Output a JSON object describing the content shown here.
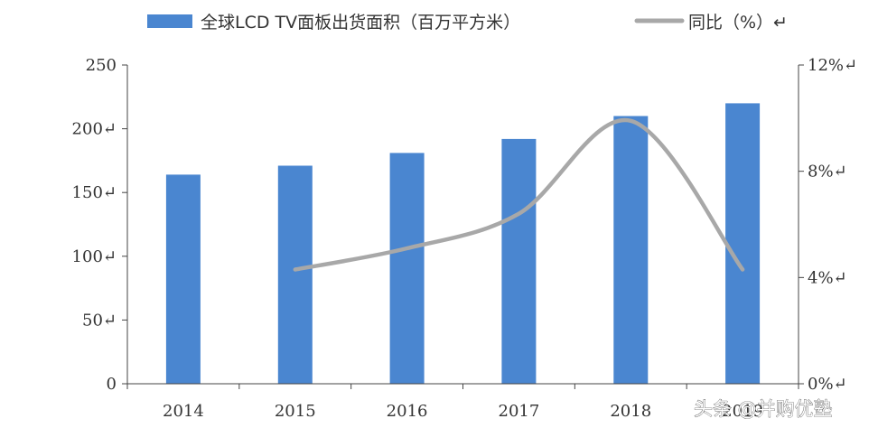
{
  "chart_data": {
    "type": "bar",
    "categories": [
      "2014",
      "2015",
      "2016",
      "2017",
      "2018",
      "2019"
    ],
    "x_tick_labels": [
      "2014",
      "2015",
      "2016",
      "2017",
      "2018",
      "2019"
    ],
    "series": [
      {
        "name": "全球LCD TV面板出货面积（百万平方米）",
        "type": "bar",
        "axis": "left",
        "color": "#4a86d0",
        "values": [
          164,
          171,
          181,
          192,
          210,
          220
        ]
      },
      {
        "name": "同比（%）↵",
        "type": "line",
        "axis": "right",
        "color": "#a8a8a8",
        "values": [
          null,
          4.3,
          5.1,
          6.4,
          9.9,
          4.3
        ]
      }
    ],
    "y_left": {
      "range": [
        0,
        250
      ],
      "ticks": [
        0,
        50,
        100,
        150,
        200,
        250
      ],
      "tick_labels": [
        "0",
        "50↵",
        "100↵",
        "150↵",
        "200↵",
        "250"
      ]
    },
    "y_right": {
      "range": [
        0,
        12
      ],
      "ticks": [
        0,
        4,
        8,
        12
      ],
      "tick_labels": [
        "0%↵",
        "4%↵",
        "8%↵",
        "12%↵"
      ]
    },
    "grid": false,
    "legend_position": "top",
    "watermark": "头条 @并购优塾"
  }
}
